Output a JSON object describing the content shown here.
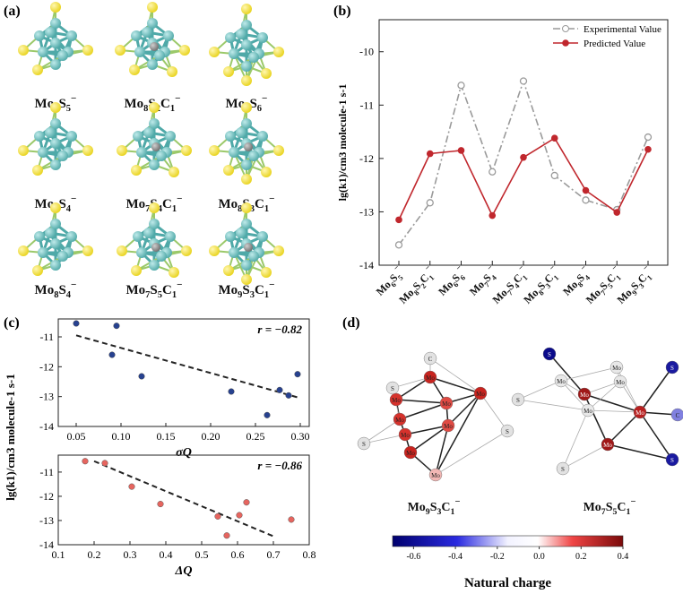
{
  "panels": {
    "a": "(a)",
    "b": "(b)",
    "c": "(c)",
    "d": "(d)"
  },
  "clusters": [
    {
      "formula": "Mo6S5−"
    },
    {
      "formula": "Mo8S2C1−"
    },
    {
      "formula": "Mo6S6−"
    },
    {
      "formula": "Mo7S4−"
    },
    {
      "formula": "Mo7S4C1−"
    },
    {
      "formula": "Mo8S3C1−"
    },
    {
      "formula": "Mo8S4−"
    },
    {
      "formula": "Mo7S5C1−"
    },
    {
      "formula": "Mo9S3C1−"
    }
  ],
  "colors": {
    "mo": "#4fa9a8",
    "s": "#e8d21a",
    "c": "#6d6d6d",
    "predicted": "#c0272d",
    "experimental": "#9a9a9a",
    "fit": "#222222"
  },
  "chart_data": [
    {
      "type": "line",
      "title": "",
      "ylabel": "lg(k1)/cm3 molecule-1 s-1",
      "ylim": [
        -14,
        -9.4
      ],
      "yticks": [
        -14,
        -13,
        -12,
        -11,
        -10
      ],
      "categories": [
        "Mo6S5−",
        "Mo8S2C1−",
        "Mo6S6−",
        "Mo7S4−",
        "Mo7S4C1−",
        "Mo8S3C1−",
        "Mo8S4−",
        "Mo7S5C1−",
        "Mo9S3C1−"
      ],
      "series": [
        {
          "name": "Experimental Value",
          "values": [
            -13.62,
            -12.83,
            -10.63,
            -12.25,
            -10.55,
            -12.32,
            -12.78,
            -12.96,
            -11.6
          ]
        },
        {
          "name": "Predicted Value",
          "values": [
            -13.15,
            -11.91,
            -11.85,
            -13.07,
            -11.98,
            -11.62,
            -12.6,
            -13.01,
            -11.83
          ]
        }
      ],
      "legend": "top-right"
    },
    {
      "type": "scatter",
      "xlabel": "σQ",
      "ylabel": "lg(k1)/cm3 molecule-1 s-1",
      "xlim": [
        0.03,
        0.31
      ],
      "ylim": [
        -14,
        -10.4
      ],
      "xticks": [
        0.05,
        0.1,
        0.15,
        0.2,
        0.25,
        0.3
      ],
      "yticks": [
        -14,
        -13,
        -12,
        -11
      ],
      "x": [
        0.05,
        0.09,
        0.095,
        0.123,
        0.223,
        0.263,
        0.277,
        0.287,
        0.297
      ],
      "y": [
        -10.55,
        -11.6,
        -10.63,
        -12.32,
        -12.83,
        -13.62,
        -12.78,
        -12.96,
        -12.25
      ],
      "fit": {
        "x": [
          0.05,
          0.3
        ],
        "y": [
          -10.95,
          -13.05
        ]
      },
      "annotation": "r = −0.82"
    },
    {
      "type": "scatter",
      "xlabel": "ΔQ",
      "ylabel": "",
      "xlim": [
        0.1,
        0.8
      ],
      "ylim": [
        -14,
        -10.3
      ],
      "xticks": [
        0.1,
        0.2,
        0.3,
        0.4,
        0.5,
        0.6,
        0.7,
        0.8
      ],
      "yticks": [
        -14,
        -13,
        -12,
        -11
      ],
      "x": [
        0.175,
        0.23,
        0.305,
        0.385,
        0.545,
        0.57,
        0.605,
        0.625,
        0.75
      ],
      "y": [
        -10.55,
        -10.63,
        -11.6,
        -12.32,
        -12.83,
        -13.62,
        -12.78,
        -12.25,
        -12.96
      ],
      "fit": {
        "x": [
          0.2,
          0.7
        ],
        "y": [
          -10.55,
          -13.65
        ]
      },
      "annotation": "r = −0.86"
    },
    {
      "type": "heatmap",
      "colorbar": {
        "label": "Natural charge",
        "ticks": [
          -0.6,
          -0.4,
          -0.2,
          0.0,
          0.2,
          0.4
        ],
        "range": [
          -0.7,
          0.4
        ]
      }
    }
  ],
  "structures_d": [
    {
      "name": "Mo9S3C1−",
      "atom_labels": [
        "Mo",
        "S",
        "C"
      ]
    },
    {
      "name": "Mo7S5C1−",
      "atom_labels": [
        "Mo",
        "S",
        "C"
      ]
    }
  ]
}
